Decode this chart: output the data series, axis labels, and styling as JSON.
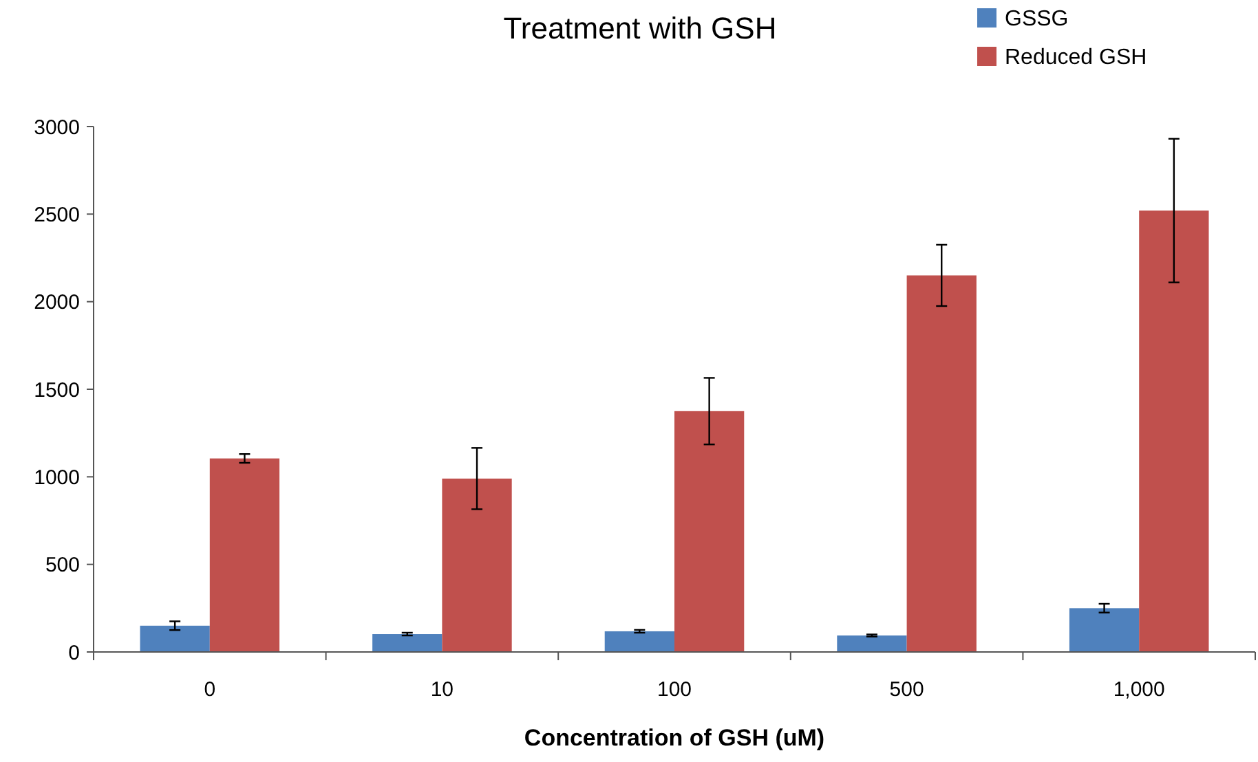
{
  "chart_data": {
    "type": "bar",
    "title": "Treatment with GSH",
    "xlabel": "Concentration of GSH (uM)",
    "categories": [
      "0",
      "10",
      "100",
      "500",
      "1,000"
    ],
    "series": [
      {
        "name": "GSSG",
        "color": "#4f81bd",
        "values": [
          150,
          102,
          118,
          94,
          250
        ],
        "errors": [
          25,
          8,
          8,
          6,
          25
        ]
      },
      {
        "name": "Reduced GSH",
        "color": "#c0504d",
        "values": [
          1105,
          990,
          1375,
          2150,
          2520
        ],
        "errors": [
          25,
          175,
          190,
          175,
          410
        ]
      }
    ],
    "ylim": [
      0,
      3000
    ],
    "yticks": [
      0,
      500,
      1000,
      1500,
      2000,
      2500,
      3000
    ],
    "grid": false,
    "legend": "top right"
  }
}
